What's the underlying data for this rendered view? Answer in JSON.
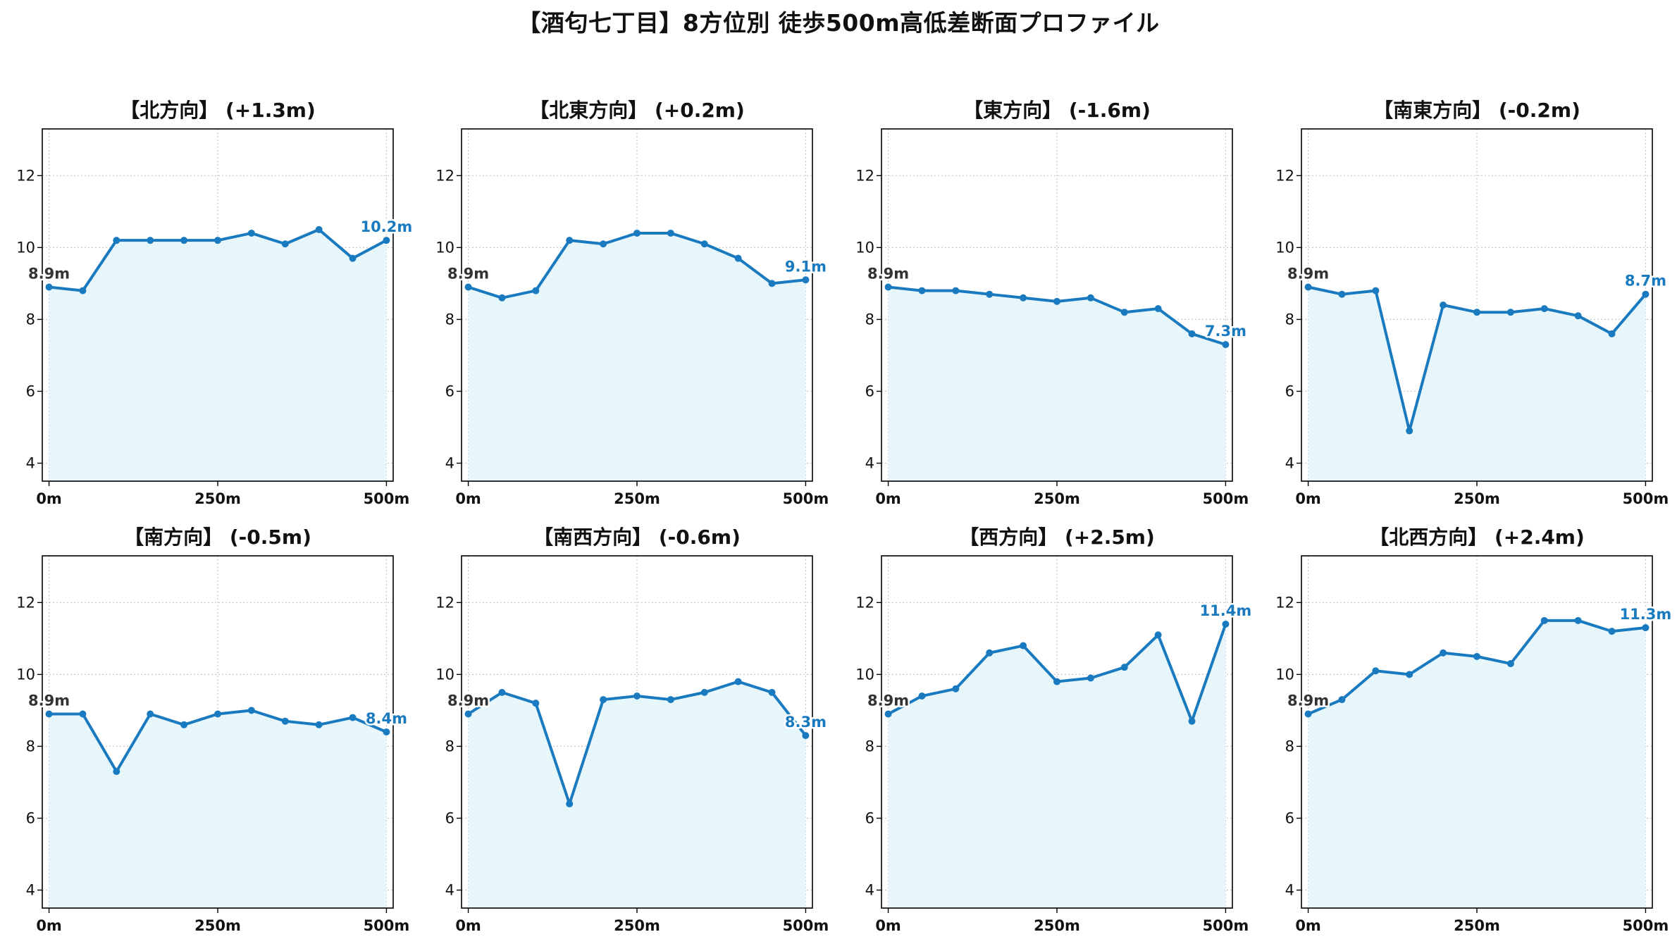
{
  "figure_title": "【酒匂七丁目】8方位別 徒歩500m高低差断面プロファイル",
  "colors": {
    "line": "#1a7abf",
    "fill": "#e6f6fb",
    "start_label": "#333333",
    "end_label": "#1a7abf",
    "grid": "#c8c8c8"
  },
  "chart_data": [
    {
      "type": "area",
      "title": "【北方向】 (+1.3m)",
      "x": [
        0,
        50,
        100,
        150,
        200,
        250,
        300,
        350,
        400,
        450,
        500
      ],
      "values": [
        8.9,
        8.8,
        10.2,
        10.2,
        10.2,
        10.2,
        10.4,
        10.1,
        10.5,
        9.7,
        10.2
      ],
      "start_label": "8.9m",
      "end_label": "10.2m",
      "xticks": [
        "0m",
        "250m",
        "500m"
      ],
      "xtick_values": [
        0,
        250,
        500
      ],
      "yticks": [
        4,
        6,
        8,
        10,
        12
      ],
      "ylim": [
        3.5,
        13.3
      ],
      "xlim": [
        -10,
        510
      ],
      "grid": true
    },
    {
      "type": "area",
      "title": "【北東方向】 (+0.2m)",
      "x": [
        0,
        50,
        100,
        150,
        200,
        250,
        300,
        350,
        400,
        450,
        500
      ],
      "values": [
        8.9,
        8.6,
        8.8,
        10.2,
        10.1,
        10.4,
        10.4,
        10.1,
        9.7,
        9.0,
        9.1
      ],
      "start_label": "8.9m",
      "end_label": "9.1m",
      "xticks": [
        "0m",
        "250m",
        "500m"
      ],
      "xtick_values": [
        0,
        250,
        500
      ],
      "yticks": [
        4,
        6,
        8,
        10,
        12
      ],
      "ylim": [
        3.5,
        13.3
      ],
      "xlim": [
        -10,
        510
      ],
      "grid": true
    },
    {
      "type": "area",
      "title": "【東方向】 (-1.6m)",
      "x": [
        0,
        50,
        100,
        150,
        200,
        250,
        300,
        350,
        400,
        450,
        500
      ],
      "values": [
        8.9,
        8.8,
        8.8,
        8.7,
        8.6,
        8.5,
        8.6,
        8.2,
        8.3,
        7.6,
        7.3
      ],
      "start_label": "8.9m",
      "end_label": "7.3m",
      "xticks": [
        "0m",
        "250m",
        "500m"
      ],
      "xtick_values": [
        0,
        250,
        500
      ],
      "yticks": [
        4,
        6,
        8,
        10,
        12
      ],
      "ylim": [
        3.5,
        13.3
      ],
      "xlim": [
        -10,
        510
      ],
      "grid": true
    },
    {
      "type": "area",
      "title": "【南東方向】 (-0.2m)",
      "x": [
        0,
        50,
        100,
        150,
        200,
        250,
        300,
        350,
        400,
        450,
        500
      ],
      "values": [
        8.9,
        8.7,
        8.8,
        4.9,
        8.4,
        8.2,
        8.2,
        8.3,
        8.1,
        7.6,
        8.7
      ],
      "start_label": "8.9m",
      "end_label": "8.7m",
      "xticks": [
        "0m",
        "250m",
        "500m"
      ],
      "xtick_values": [
        0,
        250,
        500
      ],
      "yticks": [
        4,
        6,
        8,
        10,
        12
      ],
      "ylim": [
        3.5,
        13.3
      ],
      "xlim": [
        -10,
        510
      ],
      "grid": true
    },
    {
      "type": "area",
      "title": "【南方向】 (-0.5m)",
      "x": [
        0,
        50,
        100,
        150,
        200,
        250,
        300,
        350,
        400,
        450,
        500
      ],
      "values": [
        8.9,
        8.9,
        7.3,
        8.9,
        8.6,
        8.9,
        9.0,
        8.7,
        8.6,
        8.8,
        8.4
      ],
      "start_label": "8.9m",
      "end_label": "8.4m",
      "xticks": [
        "0m",
        "250m",
        "500m"
      ],
      "xtick_values": [
        0,
        250,
        500
      ],
      "yticks": [
        4,
        6,
        8,
        10,
        12
      ],
      "ylim": [
        3.5,
        13.3
      ],
      "xlim": [
        -10,
        510
      ],
      "grid": true
    },
    {
      "type": "area",
      "title": "【南西方向】 (-0.6m)",
      "x": [
        0,
        50,
        100,
        150,
        200,
        250,
        300,
        350,
        400,
        450,
        500
      ],
      "values": [
        8.9,
        9.5,
        9.2,
        6.4,
        9.3,
        9.4,
        9.3,
        9.5,
        9.8,
        9.5,
        8.3
      ],
      "start_label": "8.9m",
      "end_label": "8.3m",
      "xticks": [
        "0m",
        "250m",
        "500m"
      ],
      "xtick_values": [
        0,
        250,
        500
      ],
      "yticks": [
        4,
        6,
        8,
        10,
        12
      ],
      "ylim": [
        3.5,
        13.3
      ],
      "xlim": [
        -10,
        510
      ],
      "grid": true
    },
    {
      "type": "area",
      "title": "【西方向】 (+2.5m)",
      "x": [
        0,
        50,
        100,
        150,
        200,
        250,
        300,
        350,
        400,
        450,
        500
      ],
      "values": [
        8.9,
        9.4,
        9.6,
        10.6,
        10.8,
        9.8,
        9.9,
        10.2,
        11.1,
        8.7,
        11.4
      ],
      "start_label": "8.9m",
      "end_label": "11.4m",
      "xticks": [
        "0m",
        "250m",
        "500m"
      ],
      "xtick_values": [
        0,
        250,
        500
      ],
      "yticks": [
        4,
        6,
        8,
        10,
        12
      ],
      "ylim": [
        3.5,
        13.3
      ],
      "xlim": [
        -10,
        510
      ],
      "grid": true
    },
    {
      "type": "area",
      "title": "【北西方向】 (+2.4m)",
      "x": [
        0,
        50,
        100,
        150,
        200,
        250,
        300,
        350,
        400,
        450,
        500
      ],
      "values": [
        8.9,
        9.3,
        10.1,
        10.0,
        10.6,
        10.5,
        10.3,
        11.5,
        11.5,
        11.2,
        11.3
      ],
      "start_label": "8.9m",
      "end_label": "11.3m",
      "xticks": [
        "0m",
        "250m",
        "500m"
      ],
      "xtick_values": [
        0,
        250,
        500
      ],
      "yticks": [
        4,
        6,
        8,
        10,
        12
      ],
      "ylim": [
        3.5,
        13.3
      ],
      "xlim": [
        -10,
        510
      ],
      "grid": true
    }
  ]
}
